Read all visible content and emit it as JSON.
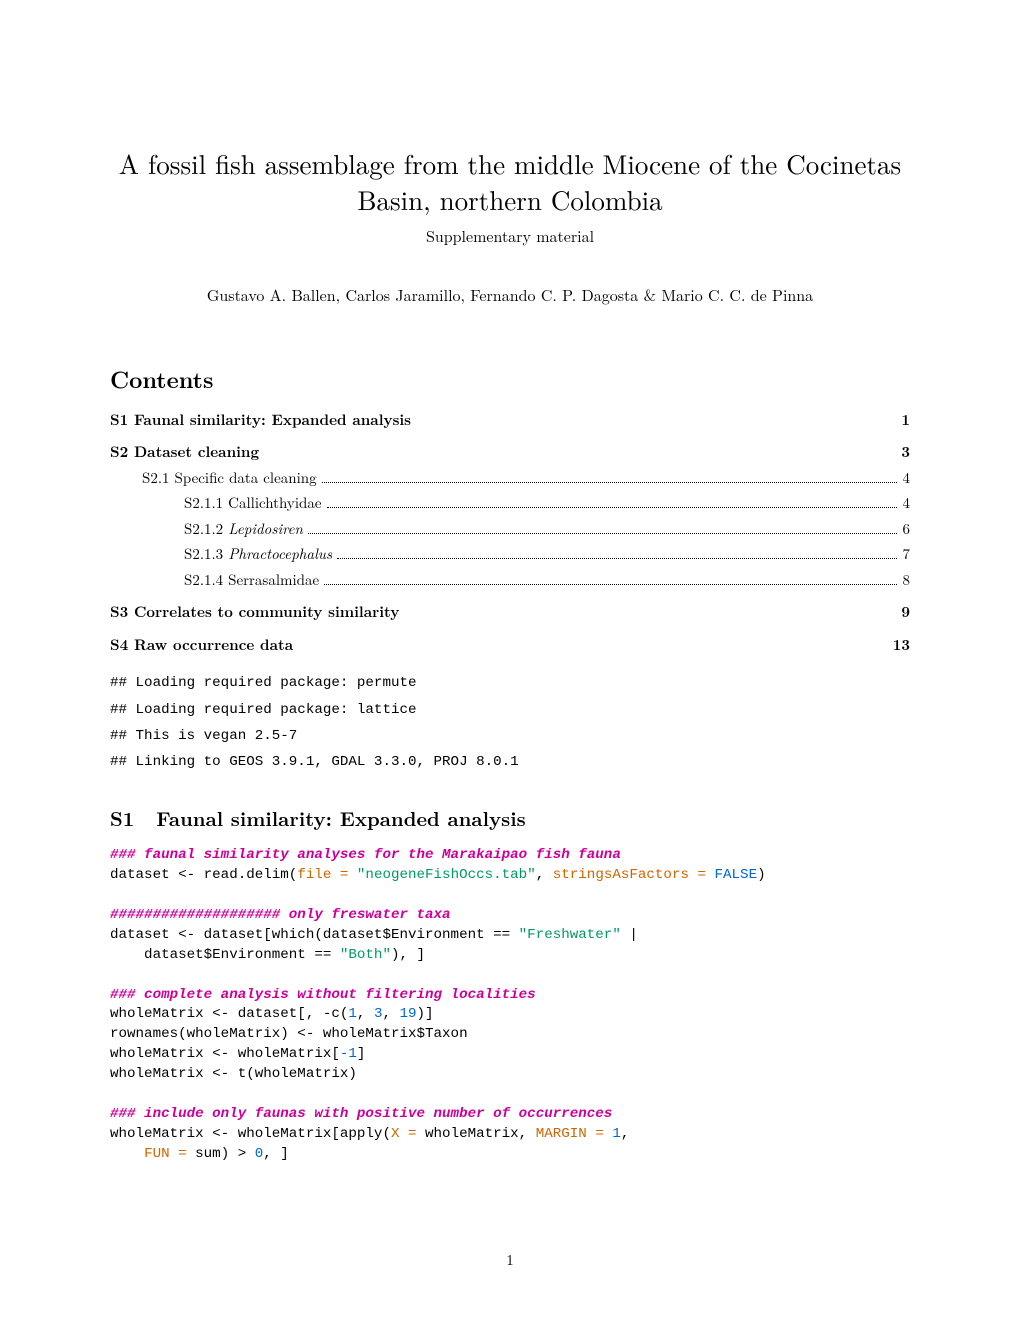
{
  "title": "A fossil fish assemblage from the middle Miocene of the Cocinetas Basin, northern Colombia",
  "subtitle": "Supplementary material",
  "authors": "Gustavo A. Ballen, Carlos Jaramillo, Fernando C. P. Dagosta & Mario C. C. de Pinna",
  "contents_heading": "Contents",
  "toc": [
    {
      "label_parts": [
        {
          "t": "S1 Faunal similarity: Expanded analysis",
          "i": false
        }
      ],
      "page": "1",
      "bold": true,
      "indent": 0,
      "dots": false
    },
    {
      "label_parts": [
        {
          "t": "S2 Dataset cleaning",
          "i": false
        }
      ],
      "page": "3",
      "bold": true,
      "indent": 0,
      "dots": false
    },
    {
      "label_parts": [
        {
          "t": "S2.1 Specific data cleaning",
          "i": false
        }
      ],
      "page": "4",
      "bold": false,
      "indent": 1,
      "dots": true
    },
    {
      "label_parts": [
        {
          "t": "S2.1.1 Callichthyidae",
          "i": false
        }
      ],
      "page": "4",
      "bold": false,
      "indent": 2,
      "dots": true
    },
    {
      "label_parts": [
        {
          "t": "S2.1.2 ",
          "i": false
        },
        {
          "t": "Lepidosiren",
          "i": true
        }
      ],
      "page": "6",
      "bold": false,
      "indent": 2,
      "dots": true
    },
    {
      "label_parts": [
        {
          "t": "S2.1.3 ",
          "i": false
        },
        {
          "t": "Phractocephalus",
          "i": true
        }
      ],
      "page": "7",
      "bold": false,
      "indent": 2,
      "dots": true
    },
    {
      "label_parts": [
        {
          "t": "S2.1.4 Serrasalmidae",
          "i": false
        }
      ],
      "page": "8",
      "bold": false,
      "indent": 2,
      "dots": true
    },
    {
      "label_parts": [
        {
          "t": "S3 Correlates to community similarity",
          "i": false
        }
      ],
      "page": "9",
      "bold": true,
      "indent": 0,
      "dots": false
    },
    {
      "label_parts": [
        {
          "t": "S4 Raw occurrence data",
          "i": false
        }
      ],
      "page": "13",
      "bold": true,
      "indent": 0,
      "dots": false
    }
  ],
  "console_lines": [
    "## Loading required package: permute",
    "## Loading required package: lattice",
    "## This is vegan 2.5-7",
    "## Linking to GEOS 3.9.1, GDAL 3.3.0, PROJ 8.0.1"
  ],
  "section_s1": {
    "num": "S1",
    "title": "Faunal similarity: Expanded analysis"
  },
  "code_tokens": [
    {
      "t": "### faunal similarity analyses for the Marakaipao fish fauna",
      "c": "cb-comment-bold"
    },
    {
      "t": "\n",
      "c": "cb-black"
    },
    {
      "t": "dataset <- read.delim(",
      "c": "cb-black"
    },
    {
      "t": "file = ",
      "c": "cb-key"
    },
    {
      "t": "\"neogeneFishOccs.tab\"",
      "c": "cb-string"
    },
    {
      "t": ", ",
      "c": "cb-black"
    },
    {
      "t": "stringsAsFactors = ",
      "c": "cb-key"
    },
    {
      "t": "FALSE",
      "c": "cb-num"
    },
    {
      "t": ")",
      "c": "cb-black"
    },
    {
      "t": "\n\n",
      "c": "cb-black"
    },
    {
      "t": "#################### only freswater taxa",
      "c": "cb-comment-bold"
    },
    {
      "t": "\n",
      "c": "cb-black"
    },
    {
      "t": "dataset <- dataset[which(dataset$Environment == ",
      "c": "cb-black"
    },
    {
      "t": "\"Freshwater\"",
      "c": "cb-string"
    },
    {
      "t": " |",
      "c": "cb-black"
    },
    {
      "t": "\n    dataset$Environment == ",
      "c": "cb-black"
    },
    {
      "t": "\"Both\"",
      "c": "cb-string"
    },
    {
      "t": "), ]",
      "c": "cb-black"
    },
    {
      "t": "\n\n",
      "c": "cb-black"
    },
    {
      "t": "### complete analysis without filtering localities",
      "c": "cb-comment-bold"
    },
    {
      "t": "\n",
      "c": "cb-black"
    },
    {
      "t": "wholeMatrix <- dataset[, -c(",
      "c": "cb-black"
    },
    {
      "t": "1",
      "c": "cb-num"
    },
    {
      "t": ", ",
      "c": "cb-black"
    },
    {
      "t": "3",
      "c": "cb-num"
    },
    {
      "t": ", ",
      "c": "cb-black"
    },
    {
      "t": "19",
      "c": "cb-num"
    },
    {
      "t": ")]",
      "c": "cb-black"
    },
    {
      "t": "\nrownames(wholeMatrix) <- wholeMatrix$Taxon",
      "c": "cb-black"
    },
    {
      "t": "\nwholeMatrix <- wholeMatrix[",
      "c": "cb-black"
    },
    {
      "t": "-1",
      "c": "cb-num"
    },
    {
      "t": "]",
      "c": "cb-black"
    },
    {
      "t": "\nwholeMatrix <- t(wholeMatrix)",
      "c": "cb-black"
    },
    {
      "t": "\n\n",
      "c": "cb-black"
    },
    {
      "t": "### include only faunas with positive number of occurrences",
      "c": "cb-comment-bold"
    },
    {
      "t": "\n",
      "c": "cb-black"
    },
    {
      "t": "wholeMatrix <- wholeMatrix[apply(",
      "c": "cb-black"
    },
    {
      "t": "X = ",
      "c": "cb-key"
    },
    {
      "t": "wholeMatrix, ",
      "c": "cb-black"
    },
    {
      "t": "MARGIN = ",
      "c": "cb-key"
    },
    {
      "t": "1",
      "c": "cb-num"
    },
    {
      "t": ",",
      "c": "cb-black"
    },
    {
      "t": "\n    ",
      "c": "cb-black"
    },
    {
      "t": "FUN = ",
      "c": "cb-key"
    },
    {
      "t": "sum) > ",
      "c": "cb-black"
    },
    {
      "t": "0",
      "c": "cb-num"
    },
    {
      "t": ", ]",
      "c": "cb-black"
    }
  ],
  "page_number": "1"
}
